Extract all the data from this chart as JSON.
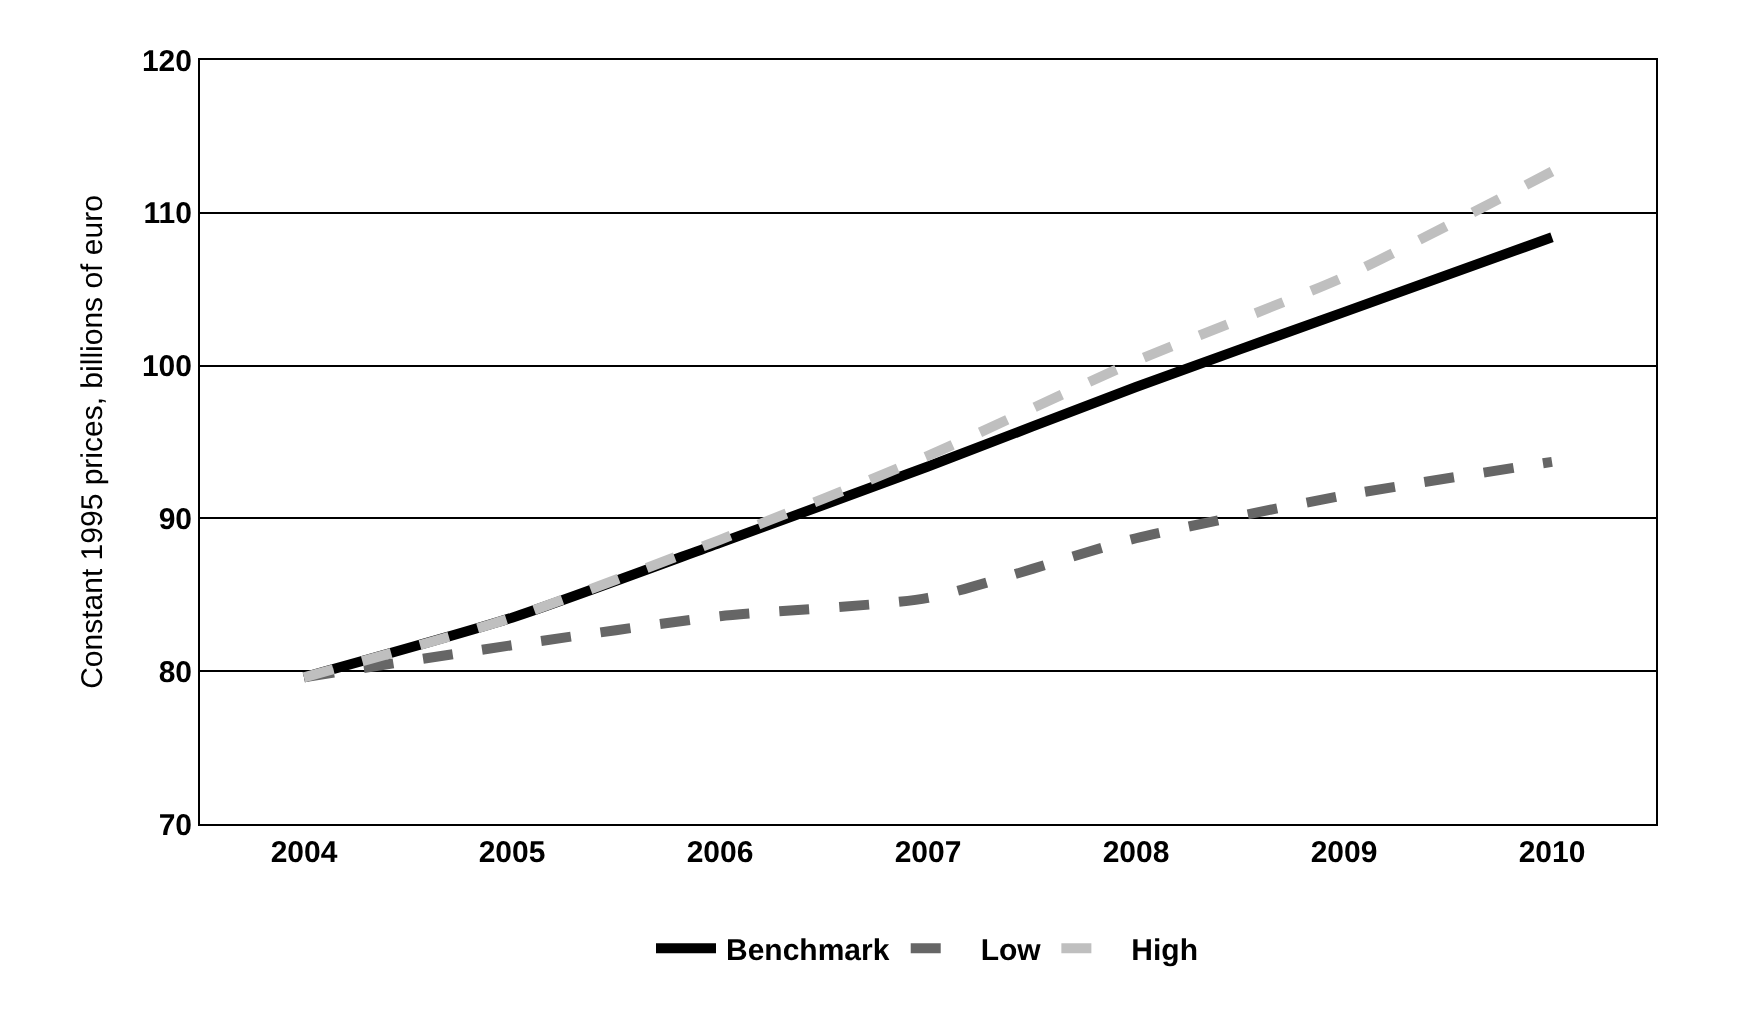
{
  "chart_data": {
    "type": "line",
    "ylabel": "Constant 1995 prices, billions of euro",
    "categories": [
      "2004",
      "2005",
      "2006",
      "2007",
      "2008",
      "2009",
      "2010"
    ],
    "series": [
      {
        "name": "Benchmark",
        "color": "#000000",
        "line_style": "solid",
        "values": [
          79.6,
          83.5,
          88.4,
          93.4,
          98.6,
          103.5,
          108.4
        ]
      },
      {
        "name": "Low",
        "color": "#666666",
        "line_style": "dashed",
        "values": [
          79.6,
          81.7,
          83.6,
          84.8,
          88.7,
          91.5,
          93.7
        ]
      },
      {
        "name": "High",
        "color": "#bfbfbf",
        "line_style": "dashed",
        "values": [
          79.6,
          83.5,
          88.6,
          94.1,
          100.3,
          105.8,
          112.7
        ]
      }
    ],
    "ylim": [
      70,
      120
    ],
    "yticks": [
      70,
      80,
      90,
      100,
      110,
      120
    ],
    "grid": "y",
    "legend": "bottom",
    "marker": "none"
  }
}
